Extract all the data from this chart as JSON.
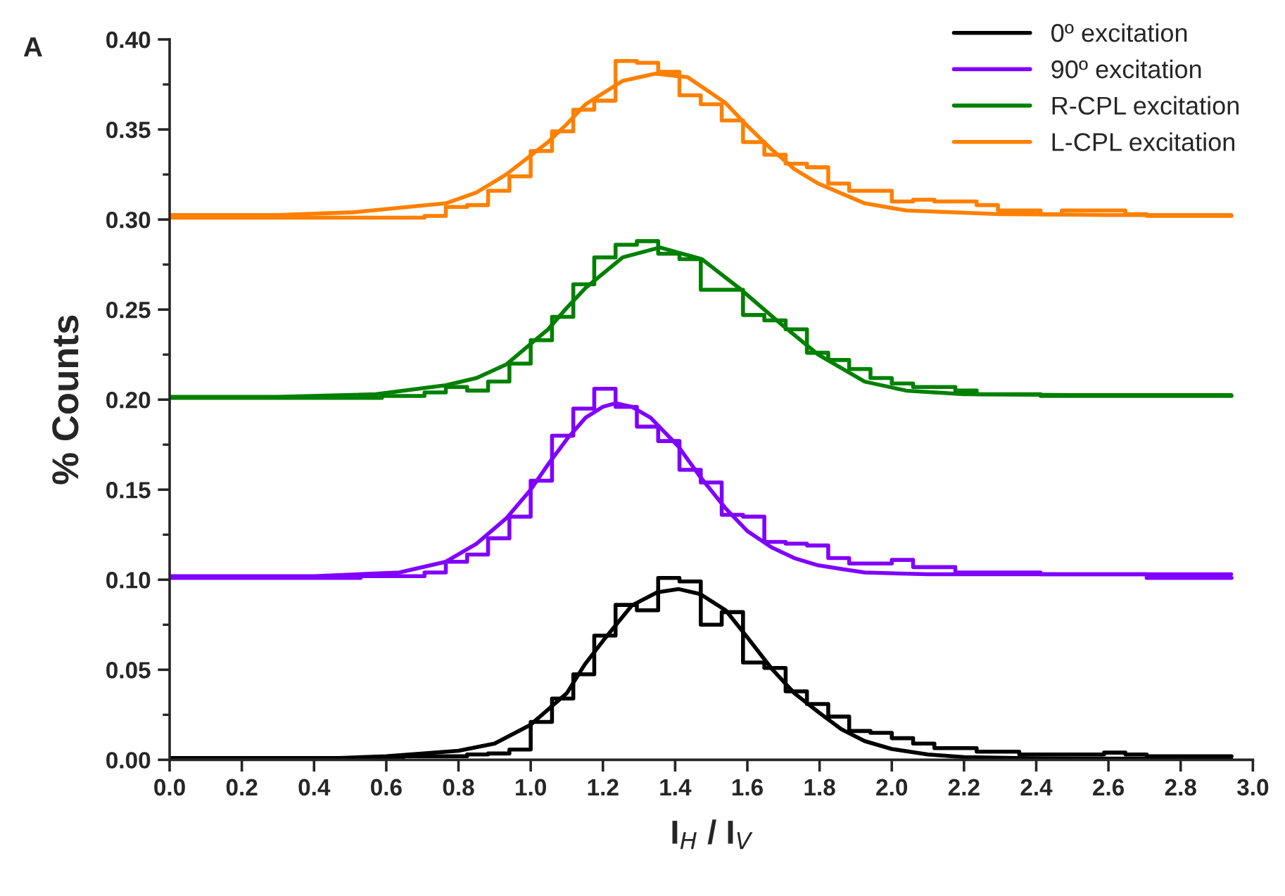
{
  "chart_data": {
    "type": "line",
    "xlabel": "I$_{H}$ / I$_{V}$",
    "ylabel": "% Counts",
    "annotations": [
      "A"
    ],
    "xlim": [
      0,
      3.0
    ],
    "xticks": [
      {
        "value": 0,
        "label": "0.0"
      },
      0.2,
      0.4,
      0.6,
      0.8,
      {
        "value": 1,
        "label": "1.0"
      },
      1.2,
      1.4,
      1.6,
      1.8,
      {
        "value": 2,
        "label": "2.0"
      },
      2.2,
      2.4,
      2.6,
      2.8,
      {
        "value": 3,
        "label": "3.0"
      }
    ],
    "ylim": [
      0,
      0.4
    ],
    "yticks": [
      {
        "value": 0,
        "label": "0.00"
      },
      {
        "value": 0.025,
        "label": null
      },
      0.05,
      {
        "value": 0.075,
        "label": null
      },
      {
        "value": 0.1,
        "label": "0.10"
      },
      {
        "value": 0.125,
        "label": null
      },
      0.15,
      {
        "value": 0.175,
        "label": null
      },
      {
        "value": 0.2,
        "label": "0.20"
      },
      {
        "value": 0.225,
        "label": null
      },
      0.25,
      {
        "value": 0.275,
        "label": null
      },
      {
        "value": 0.3,
        "label": "0.30"
      },
      {
        "value": 0.325,
        "label": null
      },
      0.35,
      {
        "value": 0.375,
        "label": null
      },
      {
        "value": 0.4,
        "label": "0.40"
      }
    ],
    "grid": false,
    "legend": "top right",
    "marker": "none",
    "line_style": "solid",
    "series": [
      {
        "type": "step",
        "color": "#000000",
        "x": [
          0,
          0.059,
          0.118,
          0.176,
          0.235,
          0.294,
          0.353,
          0.412,
          0.471,
          0.529,
          0.588,
          0.647,
          0.706,
          0.765,
          0.824,
          0.882,
          0.941,
          1.0,
          1.059,
          1.118,
          1.176,
          1.235,
          1.294,
          1.353,
          1.412,
          1.471,
          1.529,
          1.588,
          1.647,
          1.706,
          1.765,
          1.824,
          1.882,
          1.941,
          2.0,
          2.059,
          2.118,
          2.176,
          2.235,
          2.294,
          2.353,
          2.412,
          2.471,
          2.529,
          2.588,
          2.647,
          2.706,
          2.765,
          2.824,
          2.882,
          2.941
        ],
        "values": [
          0.001,
          0.001,
          0.001,
          0.001,
          0.001,
          0.001,
          0.001,
          0.001,
          0.001,
          0.001,
          0.001,
          0.002,
          0.002,
          0.002,
          0.003,
          0.0035,
          0.0057,
          0.021,
          0.034,
          0.0475,
          0.069,
          0.086,
          0.083,
          0.101,
          0.099,
          0.075,
          0.082,
          0.054,
          0.051,
          0.038,
          0.031,
          0.024,
          0.016,
          0.015,
          0.012,
          0.009,
          0.0065,
          0.0065,
          0.0045,
          0.0045,
          0.003,
          0.003,
          0.003,
          0.003,
          0.004,
          0.003,
          0.002,
          0.002,
          0.002,
          0.002,
          0.002
        ]
      },
      {
        "type": "step",
        "color": "#8000ff",
        "x": [
          0,
          0.059,
          0.118,
          0.176,
          0.235,
          0.294,
          0.353,
          0.412,
          0.471,
          0.529,
          0.588,
          0.647,
          0.706,
          0.765,
          0.824,
          0.882,
          0.941,
          1.0,
          1.059,
          1.118,
          1.176,
          1.235,
          1.294,
          1.353,
          1.412,
          1.471,
          1.529,
          1.588,
          1.647,
          1.706,
          1.765,
          1.824,
          1.882,
          1.941,
          2.0,
          2.059,
          2.118,
          2.176,
          2.235,
          2.294,
          2.353,
          2.412,
          2.471,
          2.529,
          2.588,
          2.647,
          2.706,
          2.765,
          2.824,
          2.882,
          2.941
        ],
        "values": [
          0.101,
          0.101,
          0.101,
          0.101,
          0.101,
          0.101,
          0.101,
          0.101,
          0.101,
          0.102,
          0.102,
          0.102,
          0.104,
          0.11,
          0.114,
          0.123,
          0.135,
          0.155,
          0.18,
          0.195,
          0.206,
          0.196,
          0.185,
          0.177,
          0.161,
          0.154,
          0.136,
          0.135,
          0.121,
          0.12,
          0.119,
          0.112,
          0.109,
          0.109,
          0.111,
          0.107,
          0.107,
          0.104,
          0.104,
          0.104,
          0.104,
          0.103,
          0.103,
          0.103,
          0.103,
          0.103,
          0.101,
          0.101,
          0.101,
          0.101,
          0.101
        ]
      },
      {
        "type": "step",
        "color": "#008000",
        "x": [
          0,
          0.059,
          0.118,
          0.176,
          0.235,
          0.294,
          0.353,
          0.412,
          0.471,
          0.529,
          0.588,
          0.647,
          0.706,
          0.765,
          0.824,
          0.882,
          0.941,
          1.0,
          1.059,
          1.118,
          1.176,
          1.235,
          1.294,
          1.353,
          1.412,
          1.471,
          1.529,
          1.588,
          1.647,
          1.706,
          1.765,
          1.824,
          1.882,
          1.941,
          2.0,
          2.059,
          2.118,
          2.176,
          2.235,
          2.294,
          2.353,
          2.412,
          2.471,
          2.529,
          2.588,
          2.647,
          2.706,
          2.765,
          2.824,
          2.882,
          2.941
        ],
        "values": [
          0.201,
          0.201,
          0.201,
          0.201,
          0.201,
          0.201,
          0.201,
          0.201,
          0.201,
          0.201,
          0.202,
          0.202,
          0.204,
          0.207,
          0.205,
          0.21,
          0.22,
          0.233,
          0.246,
          0.264,
          0.279,
          0.286,
          0.288,
          0.281,
          0.278,
          0.261,
          0.261,
          0.247,
          0.244,
          0.239,
          0.226,
          0.222,
          0.217,
          0.212,
          0.209,
          0.207,
          0.207,
          0.205,
          0.203,
          0.203,
          0.203,
          0.202,
          0.202,
          0.202,
          0.202,
          0.202,
          0.202,
          0.202,
          0.202,
          0.202,
          0.202
        ]
      },
      {
        "type": "step",
        "color": "#ff8000",
        "x": [
          0,
          0.059,
          0.118,
          0.176,
          0.235,
          0.294,
          0.353,
          0.412,
          0.471,
          0.529,
          0.588,
          0.647,
          0.706,
          0.765,
          0.824,
          0.882,
          0.941,
          1.0,
          1.059,
          1.118,
          1.176,
          1.235,
          1.294,
          1.353,
          1.412,
          1.471,
          1.529,
          1.588,
          1.647,
          1.706,
          1.765,
          1.824,
          1.882,
          1.941,
          2.0,
          2.059,
          2.118,
          2.176,
          2.235,
          2.294,
          2.353,
          2.412,
          2.471,
          2.529,
          2.588,
          2.647,
          2.706,
          2.765,
          2.824,
          2.882,
          2.941
        ],
        "values": [
          0.301,
          0.301,
          0.301,
          0.301,
          0.301,
          0.301,
          0.301,
          0.301,
          0.301,
          0.301,
          0.301,
          0.301,
          0.302,
          0.307,
          0.308,
          0.316,
          0.324,
          0.338,
          0.349,
          0.361,
          0.366,
          0.388,
          0.387,
          0.382,
          0.369,
          0.364,
          0.355,
          0.343,
          0.336,
          0.331,
          0.329,
          0.32,
          0.316,
          0.316,
          0.31,
          0.311,
          0.31,
          0.31,
          0.308,
          0.305,
          0.305,
          0.303,
          0.305,
          0.305,
          0.305,
          0.303,
          0.302,
          0.302,
          0.302,
          0.302,
          0.302
        ]
      },
      {
        "name": "0º excitation",
        "color": "#000000",
        "x": [
          0.0,
          0.4,
          0.6,
          0.8,
          0.9,
          1.0,
          1.1,
          1.15,
          1.2,
          1.28,
          1.35,
          1.41,
          1.47,
          1.54,
          1.6,
          1.667,
          1.73,
          1.8,
          1.86,
          1.925,
          2.0,
          2.1,
          2.2,
          2.4,
          2.94
        ],
        "values": [
          0.0005,
          0.0005,
          0.002,
          0.005,
          0.009,
          0.0195,
          0.037,
          0.053,
          0.066,
          0.0857,
          0.093,
          0.0948,
          0.092,
          0.083,
          0.068,
          0.0507,
          0.037,
          0.026,
          0.017,
          0.0104,
          0.006,
          0.003,
          0.0015,
          0.0008,
          0.0005
        ]
      },
      {
        "name": "90º excitation",
        "color": "#8000ff",
        "x": [
          0.0,
          0.4,
          0.636,
          0.765,
          0.85,
          0.932,
          1.0,
          1.048,
          1.1,
          1.152,
          1.2,
          1.235,
          1.28,
          1.332,
          1.409,
          1.47,
          1.538,
          1.6,
          1.667,
          1.73,
          1.796,
          1.86,
          1.925,
          2.1,
          2.4,
          2.94
        ],
        "values": [
          0.102,
          0.102,
          0.104,
          0.11,
          0.12,
          0.134,
          0.15,
          0.164,
          0.178,
          0.19,
          0.196,
          0.198,
          0.196,
          0.19,
          0.174,
          0.157,
          0.14,
          0.127,
          0.118,
          0.112,
          0.108,
          0.106,
          0.104,
          0.103,
          0.103,
          0.103
        ]
      },
      {
        "name": "R-CPL excitation",
        "color": "#008000",
        "x": [
          0.0,
          0.3,
          0.571,
          0.765,
          0.85,
          0.932,
          1.048,
          1.1,
          1.152,
          1.255,
          1.358,
          1.474,
          1.577,
          1.693,
          1.796,
          1.925,
          2.04,
          2.2,
          2.5,
          2.94
        ],
        "values": [
          0.2015,
          0.2015,
          0.203,
          0.208,
          0.212,
          0.2195,
          0.239,
          0.251,
          0.262,
          0.279,
          0.2845,
          0.278,
          0.262,
          0.242,
          0.225,
          0.21,
          0.205,
          0.203,
          0.2025,
          0.2025
        ]
      },
      {
        "name": "L-CPL excitation",
        "color": "#ff8000",
        "x": [
          0.0,
          0.3,
          0.507,
          0.765,
          0.85,
          0.932,
          1.048,
          1.1,
          1.152,
          1.255,
          1.345,
          1.435,
          1.538,
          1.6,
          1.667,
          1.73,
          1.796,
          1.925,
          2.04,
          2.3,
          2.6,
          2.94
        ],
        "values": [
          0.3025,
          0.3025,
          0.304,
          0.309,
          0.315,
          0.325,
          0.343,
          0.353,
          0.364,
          0.377,
          0.381,
          0.379,
          0.365,
          0.352,
          0.339,
          0.328,
          0.32,
          0.309,
          0.305,
          0.303,
          0.3025,
          0.3025
        ]
      }
    ]
  }
}
